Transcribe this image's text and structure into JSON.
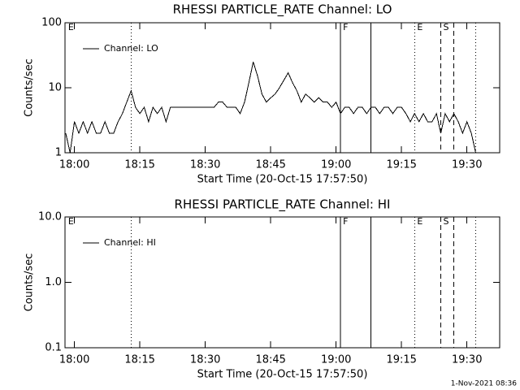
{
  "chart_data": [
    {
      "type": "line",
      "title": "RHESSI PARTICLE_RATE Channel: LO",
      "xlabel": "Start Time (20-Oct-15 17:57:50)",
      "ylabel": "Counts/sec",
      "log_y": true,
      "ylim": [
        1,
        100
      ],
      "yticks": [
        1,
        10,
        100
      ],
      "xlim": [
        "17:57:50",
        "19:37:30"
      ],
      "xticks": [
        "18:00",
        "18:15",
        "18:30",
        "18:45",
        "19:00",
        "19:15",
        "19:30"
      ],
      "legend": "upper left",
      "x": [
        "17:58",
        "17:59",
        "18:00",
        "18:01",
        "18:02",
        "18:03",
        "18:04",
        "18:05",
        "18:06",
        "18:07",
        "18:08",
        "18:09",
        "18:10",
        "18:11",
        "18:12",
        "18:13",
        "18:14",
        "18:15",
        "18:16",
        "18:17",
        "18:18",
        "18:19",
        "18:20",
        "18:21",
        "18:22",
        "18:23",
        "18:24",
        "18:25",
        "18:26",
        "18:27",
        "18:28",
        "18:29",
        "18:30",
        "18:31",
        "18:32",
        "18:33",
        "18:34",
        "18:35",
        "18:36",
        "18:37",
        "18:38",
        "18:39",
        "18:40",
        "18:41",
        "18:42",
        "18:43",
        "18:44",
        "18:45",
        "18:46",
        "18:47",
        "18:48",
        "18:49",
        "18:50",
        "18:51",
        "18:52",
        "18:53",
        "18:54",
        "18:55",
        "18:56",
        "18:57",
        "18:58",
        "18:59",
        "19:00",
        "19:01",
        "19:02",
        "19:03",
        "19:04",
        "19:05",
        "19:06",
        "19:07",
        "19:08",
        "19:09",
        "19:10",
        "19:11",
        "19:12",
        "19:13",
        "19:14",
        "19:15",
        "19:16",
        "19:17",
        "19:18",
        "19:19",
        "19:20",
        "19:21",
        "19:22",
        "19:23",
        "19:24",
        "19:25",
        "19:26",
        "19:27",
        "19:28",
        "19:29",
        "19:30",
        "19:31",
        "19:32",
        "19:33"
      ],
      "series": [
        {
          "name": "Channel: LO",
          "color": "#000000",
          "values": [
            2,
            1,
            3,
            2,
            3,
            2,
            3,
            2,
            2,
            3,
            2,
            2,
            3,
            4,
            6,
            9,
            5,
            4,
            5,
            3,
            5,
            4,
            5,
            3,
            5,
            5,
            5,
            5,
            5,
            5,
            5,
            5,
            5,
            5,
            5,
            6,
            6,
            5,
            5,
            5,
            4,
            6,
            12,
            25,
            15,
            8,
            6,
            7,
            8,
            10,
            13,
            17,
            12,
            9,
            6,
            8,
            7,
            6,
            7,
            6,
            6,
            5,
            6,
            4,
            5,
            5,
            4,
            5,
            5,
            4,
            5,
            5,
            4,
            5,
            5,
            4,
            5,
            5,
            4,
            3,
            4,
            3,
            4,
            3,
            3,
            4,
            2,
            4,
            3,
            4,
            3,
            2,
            3,
            2,
            1,
            1
          ]
        }
      ],
      "markers": [
        {
          "x": "17:58",
          "style": "none",
          "label": "E"
        },
        {
          "x": "18:13",
          "style": "dotted"
        },
        {
          "x": "19:01",
          "style": "solid",
          "label": "F"
        },
        {
          "x": "19:08",
          "style": "solid"
        },
        {
          "x": "19:18",
          "style": "dotted",
          "label": "E"
        },
        {
          "x": "19:24",
          "style": "dashed",
          "label": "S"
        },
        {
          "x": "19:27",
          "style": "dashed"
        },
        {
          "x": "19:32",
          "style": "dotted"
        }
      ]
    },
    {
      "type": "line",
      "title": "RHESSI PARTICLE_RATE Channel: HI",
      "xlabel": "Start Time (20-Oct-15 17:57:50)",
      "ylabel": "Counts/sec",
      "log_y": true,
      "ylim": [
        0.1,
        10
      ],
      "yticks": [
        0.1,
        {
          "value": 1,
          "label": "1.0"
        },
        {
          "value": 10,
          "label": "10.0"
        }
      ],
      "xlim": [
        "17:57:50",
        "19:37:30"
      ],
      "xticks": [
        "18:00",
        "18:15",
        "18:30",
        "18:45",
        "19:00",
        "19:15",
        "19:30"
      ],
      "legend": "upper left",
      "x": [],
      "series": [
        {
          "name": "Channel: HI",
          "color": "#000000",
          "values": []
        }
      ],
      "markers": [
        {
          "x": "17:58",
          "style": "none",
          "label": "E"
        },
        {
          "x": "18:13",
          "style": "dotted"
        },
        {
          "x": "19:01",
          "style": "solid",
          "label": "F"
        },
        {
          "x": "19:08",
          "style": "solid"
        },
        {
          "x": "19:18",
          "style": "dotted",
          "label": "E"
        },
        {
          "x": "19:24",
          "style": "dashed",
          "label": "S"
        },
        {
          "x": "19:27",
          "style": "dashed"
        },
        {
          "x": "19:32",
          "style": "dotted"
        }
      ]
    }
  ],
  "footer": "1-Nov-2021 08:36"
}
